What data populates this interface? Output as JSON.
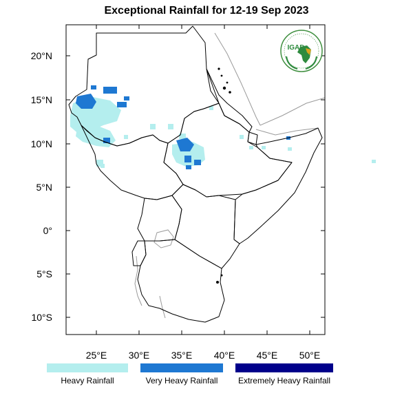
{
  "title": "Exceptional Rainfall for 12-19 Sep 2023",
  "logo": {
    "text": "IGAD",
    "colors": {
      "green": "#2e8b3e",
      "gold": "#d9a520",
      "ring": "#3f8f3f"
    }
  },
  "map": {
    "lat_ticks": [
      "20°N",
      "15°N",
      "10°N",
      "5°N",
      "0°",
      "5°S",
      "10°S"
    ],
    "lon_ticks": [
      "25°E",
      "30°E",
      "35°E",
      "40°E",
      "45°E",
      "50°E"
    ]
  },
  "legend": [
    {
      "label": "Heavy Rainfall",
      "color": "#b4eeee"
    },
    {
      "label": "Very Heavy Rainfall",
      "color": "#1e78d2"
    },
    {
      "label": "Extremely Heavy Rainfall",
      "color": "#00008b"
    }
  ]
}
